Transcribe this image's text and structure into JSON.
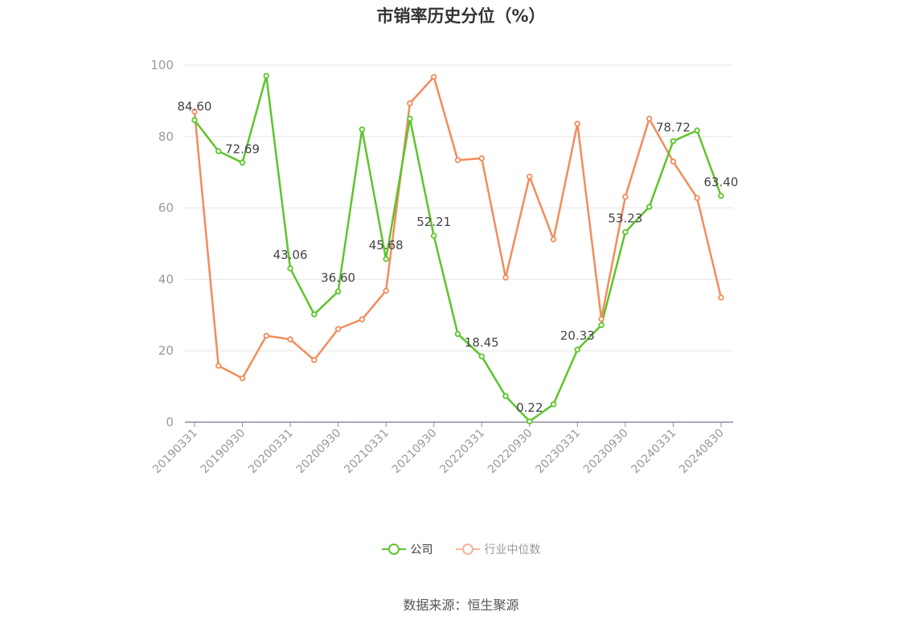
{
  "chart_data": {
    "type": "line",
    "title": "市销率历史分位（%）",
    "x": [
      "20190331",
      "20190630",
      "20190930",
      "20191231",
      "20200331",
      "20200630",
      "20200930",
      "20201231",
      "20210331",
      "20210630",
      "20210930",
      "20211231",
      "20220331",
      "20220630",
      "20220930",
      "20221231",
      "20230331",
      "20230630",
      "20230930",
      "20231231",
      "20240331",
      "20240630",
      "20240830"
    ],
    "xtick_labels": [
      "20190331",
      "20190930",
      "20200331",
      "20200930",
      "20210331",
      "20210930",
      "20220331",
      "20220930",
      "20230331",
      "20230930",
      "20240331",
      "20240830"
    ],
    "ylim": [
      0,
      100
    ],
    "yticks": [
      0,
      20,
      40,
      60,
      80,
      100
    ],
    "grid": true,
    "legend_position": "bottom",
    "series": [
      {
        "name": "公司",
        "color": "#5cc52b",
        "values": [
          84.6,
          75.9,
          72.69,
          97.0,
          43.06,
          30.2,
          36.6,
          82.0,
          45.68,
          85.0,
          52.21,
          24.7,
          18.45,
          7.3,
          0.22,
          5.0,
          20.33,
          27.2,
          53.23,
          60.3,
          78.72,
          81.7,
          63.4
        ],
        "data_labels": {
          "0": "84.60",
          "2": "72.69",
          "4": "43.06",
          "6": "36.60",
          "8": "45.68",
          "10": "52.21",
          "12": "18.45",
          "14": "0.22",
          "16": "20.33",
          "18": "53.23",
          "20": "78.72",
          "22": "63.40"
        }
      },
      {
        "name": "行业中位数",
        "color": "#f28c5b",
        "values": [
          87.0,
          15.8,
          12.3,
          24.2,
          23.2,
          17.4,
          26.1,
          28.8,
          36.8,
          89.3,
          96.7,
          73.4,
          73.9,
          40.5,
          68.8,
          51.2,
          83.6,
          28.9,
          63.1,
          85.0,
          73.0,
          62.8,
          34.9
        ]
      }
    ]
  },
  "legend": {
    "items": [
      {
        "label": "公司",
        "color": "#5cc52b"
      },
      {
        "label": "行业中位数",
        "color": "#f5b497"
      }
    ]
  },
  "source": "数据来源：恒生聚源"
}
